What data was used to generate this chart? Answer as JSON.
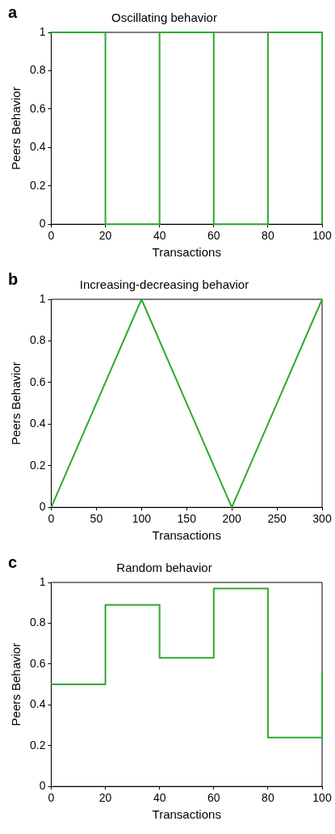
{
  "chart_data": [
    {
      "type": "step",
      "title": "Oscillating behavior",
      "xlabel": "Transactions",
      "ylabel": "Peers Behavior",
      "annotations": [
        "a"
      ],
      "x": [
        0,
        20,
        40,
        60,
        80,
        100
      ],
      "series": [
        {
          "color": "#2eaa2e",
          "values": [
            1,
            0,
            1,
            0,
            1,
            0
          ]
        }
      ],
      "xlim": [
        0,
        100
      ],
      "xticks": [
        0,
        20,
        40,
        60,
        80,
        100
      ],
      "ylim": [
        0,
        1
      ],
      "yticks": [
        0,
        0.2,
        0.4,
        0.6,
        0.8,
        1
      ]
    },
    {
      "type": "line",
      "title": "Increasing-decreasing behavior",
      "xlabel": "Transactions",
      "ylabel": "Peers Behavior",
      "annotations": [
        "b"
      ],
      "x": [
        0,
        100,
        200,
        300
      ],
      "series": [
        {
          "color": "#2eaa2e",
          "values": [
            0,
            1,
            0,
            1
          ]
        }
      ],
      "xlim": [
        0,
        300
      ],
      "xticks": [
        0,
        50,
        100,
        150,
        200,
        250,
        300
      ],
      "ylim": [
        0,
        1
      ],
      "yticks": [
        0,
        0.2,
        0.4,
        0.6,
        0.8,
        1
      ]
    },
    {
      "type": "step",
      "title": "Random behavior",
      "xlabel": "Transactions",
      "ylabel": "Peers Behavior",
      "annotations": [
        "c"
      ],
      "x": [
        0,
        20,
        40,
        60,
        80,
        100
      ],
      "series": [
        {
          "color": "#2eaa2e",
          "values": [
            0.5,
            0.89,
            0.63,
            0.97,
            0.24,
            0.56
          ]
        }
      ],
      "xlim": [
        0,
        100
      ],
      "xticks": [
        0,
        20,
        40,
        60,
        80,
        100
      ],
      "ylim": [
        0,
        1
      ],
      "yticks": [
        0,
        0.2,
        0.4,
        0.6,
        0.8,
        1
      ]
    }
  ]
}
